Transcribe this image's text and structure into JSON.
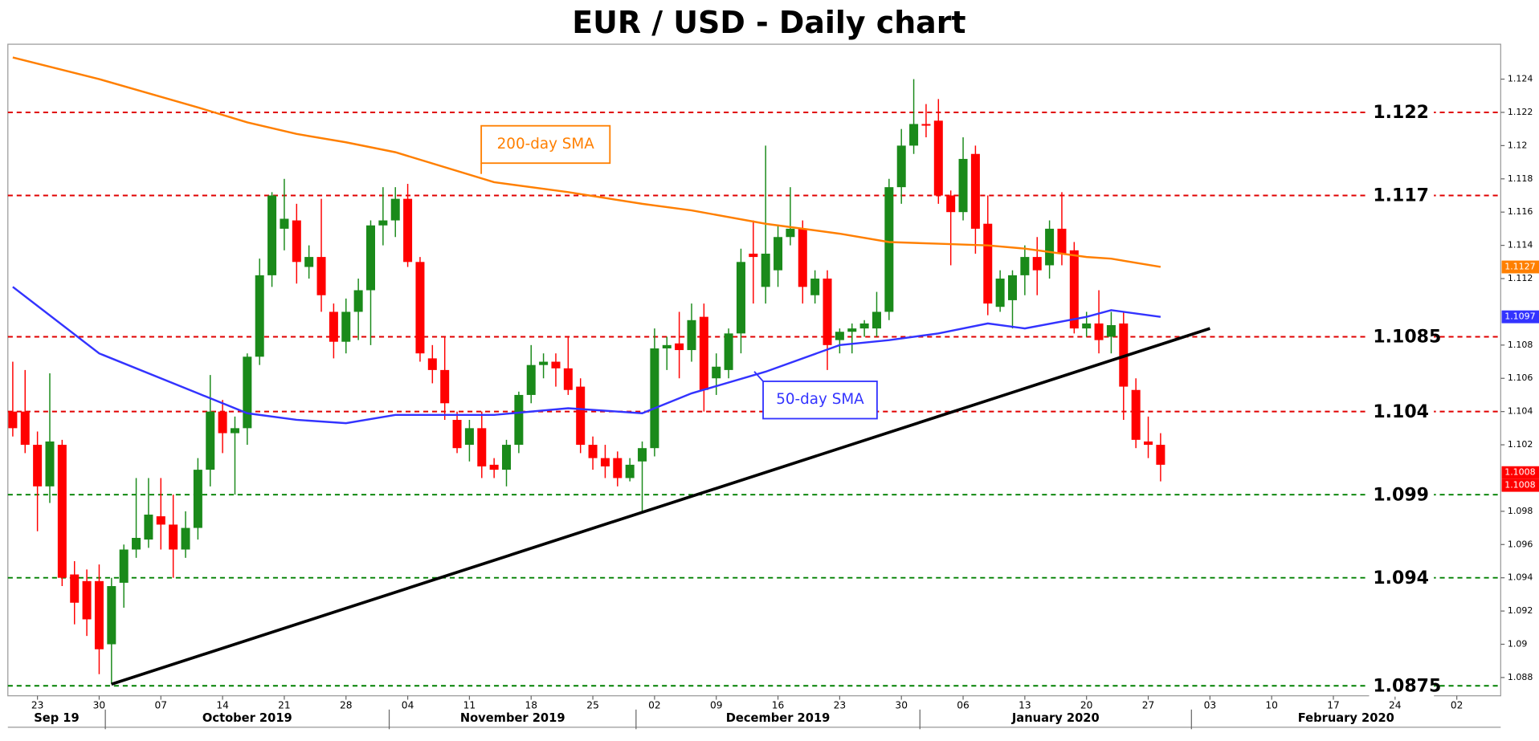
{
  "chart_data": {
    "type": "candlestick",
    "title": "EUR / USD - Daily chart",
    "up_color": "#1a8a1a",
    "down_color": "#ff0000",
    "dates": [
      "2019-09-19",
      "2019-09-20",
      "2019-09-23",
      "2019-09-24",
      "2019-09-25",
      "2019-09-26",
      "2019-09-27",
      "2019-09-30",
      "2019-10-01",
      "2019-10-02",
      "2019-10-03",
      "2019-10-04",
      "2019-10-07",
      "2019-10-08",
      "2019-10-09",
      "2019-10-10",
      "2019-10-11",
      "2019-10-14",
      "2019-10-15",
      "2019-10-16",
      "2019-10-17",
      "2019-10-18",
      "2019-10-21",
      "2019-10-22",
      "2019-10-23",
      "2019-10-24",
      "2019-10-25",
      "2019-10-28",
      "2019-10-29",
      "2019-10-30",
      "2019-10-31",
      "2019-11-01",
      "2019-11-04",
      "2019-11-05",
      "2019-11-06",
      "2019-11-07",
      "2019-11-08",
      "2019-11-11",
      "2019-11-12",
      "2019-11-13",
      "2019-11-14",
      "2019-11-15",
      "2019-11-18",
      "2019-11-19",
      "2019-11-20",
      "2019-11-21",
      "2019-11-22",
      "2019-11-25",
      "2019-11-26",
      "2019-11-27",
      "2019-11-28",
      "2019-11-29",
      "2019-12-02",
      "2019-12-03",
      "2019-12-04",
      "2019-12-05",
      "2019-12-06",
      "2019-12-09",
      "2019-12-10",
      "2019-12-11",
      "2019-12-12",
      "2019-12-13",
      "2019-12-16",
      "2019-12-17",
      "2019-12-18",
      "2019-12-19",
      "2019-12-20",
      "2019-12-23",
      "2019-12-24",
      "2019-12-25",
      "2019-12-26",
      "2019-12-27",
      "2019-12-30",
      "2019-12-31",
      "2020-01-01",
      "2020-01-02",
      "2020-01-03",
      "2020-01-06",
      "2020-01-07",
      "2020-01-08",
      "2020-01-09",
      "2020-01-10",
      "2020-01-13",
      "2020-01-14",
      "2020-01-15",
      "2020-01-16",
      "2020-01-17",
      "2020-01-20",
      "2020-01-21",
      "2020-01-22",
      "2020-01-23",
      "2020-01-24",
      "2020-01-27",
      "2020-01-28"
    ],
    "ohlc": [
      [
        1.104,
        1.107,
        1.1025,
        1.103
      ],
      [
        1.104,
        1.1065,
        1.1015,
        1.102
      ],
      [
        1.102,
        1.1028,
        1.0968,
        1.0995
      ],
      [
        1.0995,
        1.1063,
        1.0985,
        1.1022
      ],
      [
        1.102,
        1.1023,
        1.0935,
        1.094
      ],
      [
        1.0942,
        1.095,
        1.0912,
        1.0925
      ],
      [
        1.0938,
        1.0945,
        1.0905,
        1.0915
      ],
      [
        1.0938,
        1.0948,
        1.0882,
        1.0897
      ],
      [
        1.09,
        1.094,
        1.0876,
        1.0935
      ],
      [
        1.0937,
        1.096,
        1.0922,
        1.0957
      ],
      [
        1.0957,
        1.1,
        1.0952,
        1.0964
      ],
      [
        1.0963,
        1.1,
        1.0958,
        1.0978
      ],
      [
        1.0977,
        1.1,
        1.0957,
        1.0972
      ],
      [
        1.0972,
        1.099,
        1.094,
        1.0957
      ],
      [
        1.0957,
        1.098,
        1.0952,
        1.097
      ],
      [
        1.097,
        1.1012,
        1.0963,
        1.1005
      ],
      [
        1.1005,
        1.1062,
        1.0995,
        1.104
      ],
      [
        1.104,
        1.1047,
        1.1015,
        1.1027
      ],
      [
        1.1027,
        1.1037,
        1.099,
        1.103
      ],
      [
        1.103,
        1.1075,
        1.102,
        1.1073
      ],
      [
        1.1073,
        1.1132,
        1.1068,
        1.1122
      ],
      [
        1.1122,
        1.1172,
        1.1115,
        1.117
      ],
      [
        1.115,
        1.118,
        1.1137,
        1.1156
      ],
      [
        1.1155,
        1.1165,
        1.1117,
        1.113
      ],
      [
        1.1127,
        1.114,
        1.112,
        1.1133
      ],
      [
        1.1133,
        1.1168,
        1.11,
        1.111
      ],
      [
        1.11,
        1.1105,
        1.1072,
        1.1082
      ],
      [
        1.1082,
        1.1108,
        1.1075,
        1.11
      ],
      [
        1.11,
        1.112,
        1.1083,
        1.1113
      ],
      [
        1.1113,
        1.1155,
        1.108,
        1.1152
      ],
      [
        1.1152,
        1.1175,
        1.114,
        1.1155
      ],
      [
        1.1155,
        1.1175,
        1.1145,
        1.1168
      ],
      [
        1.1168,
        1.1177,
        1.1127,
        1.113
      ],
      [
        1.113,
        1.1133,
        1.107,
        1.1075
      ],
      [
        1.1072,
        1.108,
        1.1057,
        1.1065
      ],
      [
        1.1065,
        1.1085,
        1.1035,
        1.1045
      ],
      [
        1.1035,
        1.104,
        1.1015,
        1.1018
      ],
      [
        1.102,
        1.1035,
        1.101,
        1.103
      ],
      [
        1.103,
        1.104,
        1.1,
        1.1007
      ],
      [
        1.1008,
        1.1012,
        1.1,
        1.1005
      ],
      [
        1.1005,
        1.1023,
        1.0995,
        1.102
      ],
      [
        1.102,
        1.1052,
        1.1015,
        1.105
      ],
      [
        1.105,
        1.108,
        1.1045,
        1.1068
      ],
      [
        1.1068,
        1.1075,
        1.106,
        1.107
      ],
      [
        1.107,
        1.1075,
        1.1055,
        1.1066
      ],
      [
        1.1066,
        1.1085,
        1.105,
        1.1053
      ],
      [
        1.1055,
        1.106,
        1.1015,
        1.102
      ],
      [
        1.102,
        1.1025,
        1.1005,
        1.1012
      ],
      [
        1.1012,
        1.102,
        1.1,
        1.1007
      ],
      [
        1.1012,
        1.1016,
        1.0995,
        1.1
      ],
      [
        1.1,
        1.1012,
        1.0998,
        1.1008
      ],
      [
        1.101,
        1.1022,
        1.098,
        1.1018
      ],
      [
        1.1018,
        1.109,
        1.1013,
        1.1078
      ],
      [
        1.1078,
        1.1085,
        1.1065,
        1.108
      ],
      [
        1.1081,
        1.11,
        1.106,
        1.1077
      ],
      [
        1.1077,
        1.1105,
        1.107,
        1.1095
      ],
      [
        1.1097,
        1.1105,
        1.104,
        1.1053
      ],
      [
        1.106,
        1.1075,
        1.105,
        1.1067
      ],
      [
        1.1065,
        1.109,
        1.106,
        1.1087
      ],
      [
        1.1087,
        1.1138,
        1.1075,
        1.113
      ],
      [
        1.1135,
        1.1155,
        1.1105,
        1.1133
      ],
      [
        1.1115,
        1.12,
        1.1105,
        1.1135
      ],
      [
        1.1125,
        1.1152,
        1.1115,
        1.1145
      ],
      [
        1.1145,
        1.1175,
        1.114,
        1.115
      ],
      [
        1.115,
        1.1155,
        1.1105,
        1.1115
      ],
      [
        1.111,
        1.1125,
        1.1105,
        1.112
      ],
      [
        1.112,
        1.1125,
        1.1065,
        1.108
      ],
      [
        1.1083,
        1.109,
        1.1075,
        1.1088
      ],
      [
        1.1088,
        1.1093,
        1.1075,
        1.109
      ],
      [
        1.109,
        1.1095,
        1.1085,
        1.1093
      ],
      [
        1.109,
        1.1112,
        1.1085,
        1.11
      ],
      [
        1.11,
        1.118,
        1.1095,
        1.1175
      ],
      [
        1.1175,
        1.121,
        1.1165,
        1.12
      ],
      [
        1.12,
        1.124,
        1.1195,
        1.1213
      ],
      [
        1.1213,
        1.1225,
        1.1205,
        1.1212
      ],
      [
        1.1215,
        1.1228,
        1.1165,
        1.117
      ],
      [
        1.117,
        1.1173,
        1.1128,
        1.116
      ],
      [
        1.116,
        1.1205,
        1.1155,
        1.1192
      ],
      [
        1.1195,
        1.12,
        1.1135,
        1.115
      ],
      [
        1.1153,
        1.117,
        1.1098,
        1.1105
      ],
      [
        1.1103,
        1.1125,
        1.11,
        1.112
      ],
      [
        1.1107,
        1.1125,
        1.109,
        1.1122
      ],
      [
        1.1122,
        1.114,
        1.111,
        1.1133
      ],
      [
        1.1133,
        1.1145,
        1.111,
        1.1125
      ],
      [
        1.1128,
        1.1155,
        1.112,
        1.115
      ],
      [
        1.115,
        1.1172,
        1.1128,
        1.1135
      ],
      [
        1.1137,
        1.1142,
        1.1087,
        1.109
      ],
      [
        1.109,
        1.11,
        1.1085,
        1.1093
      ],
      [
        1.1093,
        1.1113,
        1.1075,
        1.1083
      ],
      [
        1.1085,
        1.11,
        1.1075,
        1.1092
      ],
      [
        1.1093,
        1.11,
        1.1035,
        1.1055
      ],
      [
        1.1053,
        1.106,
        1.1018,
        1.1023
      ],
      [
        1.1022,
        1.1037,
        1.1012,
        1.102
      ],
      [
        1.102,
        1.1027,
        1.0998,
        1.1008
      ]
    ],
    "series": [
      {
        "name": "200-day SMA",
        "color": "#ff7f00",
        "last_label": 1.1127,
        "x": [
          "2019-09-19",
          "2019-09-30",
          "2019-10-10",
          "2019-10-16",
          "2019-10-22",
          "2019-10-28",
          "2019-11-01",
          "2019-11-13",
          "2019-11-21",
          "2019-11-29",
          "2019-12-05",
          "2019-12-13",
          "2019-12-23",
          "2019-12-27",
          "2020-01-02",
          "2020-01-08",
          "2020-01-13",
          "2020-01-20",
          "2020-01-22",
          "2020-01-28"
        ],
        "values": [
          1.1253,
          1.124,
          1.1223,
          1.1214,
          1.1207,
          1.1202,
          1.1196,
          1.1178,
          1.1172,
          1.1165,
          1.1161,
          1.1153,
          1.1147,
          1.1142,
          1.1141,
          1.114,
          1.1138,
          1.1133,
          1.1132,
          1.1127
        ]
      },
      {
        "name": "50-day SMA",
        "color": "#3333ff",
        "last_label": 1.1097,
        "x": [
          "2019-09-19",
          "2019-09-30",
          "2019-10-10",
          "2019-10-16",
          "2019-10-22",
          "2019-10-28",
          "2019-11-01",
          "2019-11-13",
          "2019-11-21",
          "2019-11-29",
          "2019-12-05",
          "2019-12-13",
          "2019-12-23",
          "2019-12-27",
          "2020-01-02",
          "2020-01-08",
          "2020-01-13",
          "2020-01-20",
          "2020-01-22",
          "2020-01-28"
        ],
        "values": [
          1.1115,
          1.1075,
          1.1051,
          1.1039,
          1.1035,
          1.1033,
          1.1038,
          1.1038,
          1.1042,
          1.1039,
          1.1051,
          1.1064,
          1.108,
          1.1083,
          1.1087,
          1.1093,
          1.109,
          1.1097,
          1.1101,
          1.1097
        ]
      }
    ],
    "price_labels": [
      1.1008,
      1.1008
    ],
    "levels": [
      {
        "value": 1.122,
        "color": "#e00000"
      },
      {
        "value": 1.117,
        "color": "#e00000"
      },
      {
        "value": 1.1085,
        "color": "#e00000"
      },
      {
        "value": 1.104,
        "color": "#e00000"
      },
      {
        "value": 1.099,
        "color": "#008000"
      },
      {
        "value": 1.094,
        "color": "#008000"
      },
      {
        "value": 1.0875,
        "color": "#008000"
      }
    ],
    "trendline": {
      "color": "#000000",
      "x": [
        "2019-10-01",
        "2020-02-03"
      ],
      "values": [
        1.0876,
        1.109
      ]
    },
    "ylim": [
      1.0869,
      1.1261
    ],
    "yticks": [
      1.088,
      1.09,
      1.092,
      1.094,
      1.096,
      1.098,
      1.102,
      1.104,
      1.106,
      1.108,
      1.112,
      1.114,
      1.116,
      1.118,
      1.12,
      1.122,
      1.124
    ],
    "xlim": [
      "2019-09-19",
      "2020-03-05"
    ],
    "xticks": [
      {
        "value": "2019-09-23",
        "label": "23"
      },
      {
        "value": "2019-09-30",
        "label": "30"
      },
      {
        "value": "2019-10-07",
        "label": "07"
      },
      {
        "value": "2019-10-14",
        "label": "14"
      },
      {
        "value": "2019-10-21",
        "label": "21"
      },
      {
        "value": "2019-10-28",
        "label": "28"
      },
      {
        "value": "2019-11-04",
        "label": "04"
      },
      {
        "value": "2019-11-11",
        "label": "11"
      },
      {
        "value": "2019-11-18",
        "label": "18"
      },
      {
        "value": "2019-11-25",
        "label": "25"
      },
      {
        "value": "2019-12-02",
        "label": "02"
      },
      {
        "value": "2019-12-09",
        "label": "09"
      },
      {
        "value": "2019-12-16",
        "label": "16"
      },
      {
        "value": "2019-12-23",
        "label": "23"
      },
      {
        "value": "2019-12-30",
        "label": "30"
      },
      {
        "value": "2020-01-06",
        "label": "06"
      },
      {
        "value": "2020-01-13",
        "label": "13"
      },
      {
        "value": "2020-01-20",
        "label": "20"
      },
      {
        "value": "2020-01-27",
        "label": "27"
      },
      {
        "value": "2020-02-03",
        "label": "03"
      },
      {
        "value": "2020-02-10",
        "label": "10"
      },
      {
        "value": "2020-02-17",
        "label": "17"
      },
      {
        "value": "2020-02-24",
        "label": "24"
      },
      {
        "value": "2020-03-02",
        "label": "02"
      }
    ],
    "months": [
      {
        "value": "2019-09-19",
        "label": "Sep 19"
      },
      {
        "value": "2019-10-01",
        "label": "October 2019"
      },
      {
        "value": "2019-11-01",
        "label": "November 2019"
      },
      {
        "value": "2019-12-01",
        "label": "December 2019"
      },
      {
        "value": "2020-01-01",
        "label": "January 2020"
      },
      {
        "value": "2020-02-01",
        "label": "February 2020"
      }
    ]
  }
}
